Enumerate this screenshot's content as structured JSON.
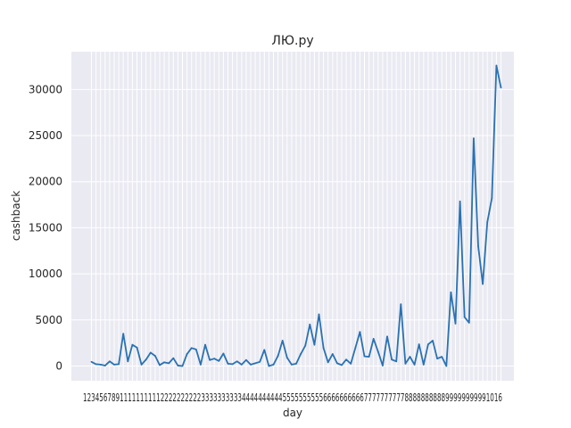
{
  "chart_data": {
    "type": "line",
    "title": "ЛЮ.ру",
    "xlabel": "day",
    "ylabel": "cashback",
    "x_ticks_label_text": "1234567891111111111222222222233333333334444444444555555555566666666667777777777888888888899999999991016",
    "yticks": [
      0,
      5000,
      10000,
      15000,
      20000,
      25000,
      30000
    ],
    "ylim": [
      -1600,
      34100
    ],
    "grid": true,
    "line_color": "#2a72b2",
    "plot_bg": "#eaeaf2",
    "values": [
      450,
      200,
      150,
      50,
      500,
      150,
      200,
      3500,
      500,
      2300,
      2000,
      150,
      700,
      1450,
      1100,
      100,
      400,
      300,
      850,
      50,
      0,
      1300,
      1950,
      1800,
      150,
      2300,
      650,
      800,
      550,
      1350,
      250,
      200,
      500,
      150,
      650,
      150,
      300,
      450,
      1750,
      0,
      150,
      1100,
      2750,
      900,
      150,
      250,
      1300,
      2200,
      4500,
      2300,
      5600,
      1950,
      400,
      1300,
      300,
      100,
      700,
      250,
      1950,
      3700,
      1050,
      1000,
      2950,
      1550,
      50,
      3200,
      700,
      500,
      6700,
      250,
      1000,
      150,
      2350,
      150,
      2350,
      2750,
      800,
      1000,
      0,
      8000,
      4600,
      17850,
      5300,
      4700,
      24700,
      13000,
      8900,
      15600,
      18200,
      32600,
      30200
    ]
  }
}
